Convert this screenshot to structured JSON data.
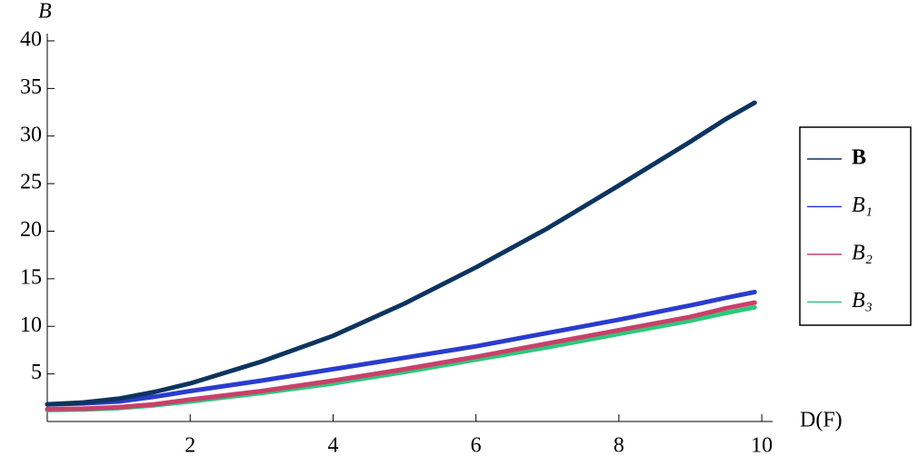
{
  "chart_data": {
    "type": "line",
    "x_label": "D(F)",
    "y_label": "B",
    "x": [
      0,
      0.5,
      1,
      1.5,
      2,
      3,
      4,
      5,
      6,
      7,
      8,
      9,
      9.5,
      9.9
    ],
    "series": [
      {
        "name": "B",
        "color": "#0d3460",
        "values": [
          1.8,
          2.0,
          2.4,
          3.1,
          4.0,
          6.3,
          9.0,
          12.4,
          16.2,
          20.3,
          24.8,
          29.4,
          31.8,
          33.5
        ]
      },
      {
        "name": "B₁",
        "color": "#2a3ccf",
        "values": [
          1.8,
          1.9,
          2.1,
          2.6,
          3.2,
          4.3,
          5.5,
          6.7,
          7.9,
          9.3,
          10.7,
          12.2,
          13.0,
          13.6
        ]
      },
      {
        "name": "B₂",
        "color": "#c8406a",
        "values": [
          1.3,
          1.35,
          1.5,
          1.8,
          2.3,
          3.2,
          4.3,
          5.5,
          6.8,
          8.2,
          9.6,
          11.0,
          11.9,
          12.5
        ]
      },
      {
        "name": "B₃",
        "color": "#2ec77a",
        "values": [
          1.2,
          1.25,
          1.4,
          1.7,
          2.1,
          3.0,
          4.0,
          5.2,
          6.5,
          7.8,
          9.2,
          10.6,
          11.4,
          12.0
        ]
      }
    ],
    "xlim": [
      0,
      10.1
    ],
    "xticks": [
      2,
      4,
      6,
      8,
      10
    ],
    "ylim": [
      0,
      40
    ],
    "yticks": [
      5,
      10,
      15,
      20,
      25,
      30,
      35,
      40
    ],
    "legend": "right"
  }
}
